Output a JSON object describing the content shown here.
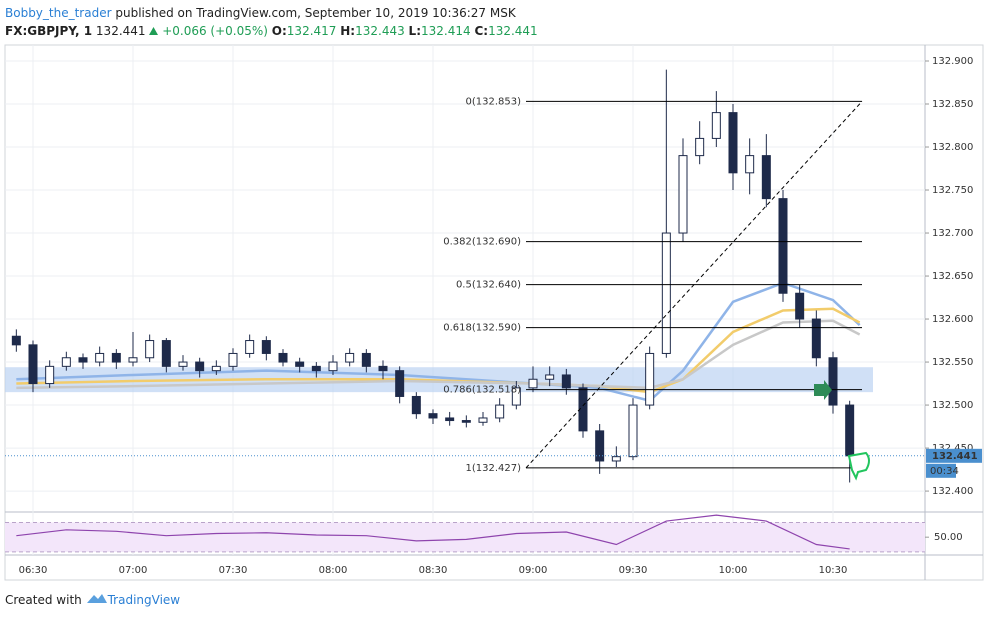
{
  "header": {
    "author": "Bobby_the_trader",
    "published": "published on TradingView.com, September 10, 2019 10:36:27 MSK",
    "symbol": "FX:GBPJPY, 1",
    "last": "132.441",
    "change": "+0.066 (+0.05%)",
    "ohlc": [
      {
        "key": "O:",
        "value": "132.417"
      },
      {
        "key": "H:",
        "value": "132.443"
      },
      {
        "key": "L:",
        "value": "132.414"
      },
      {
        "key": "C:",
        "value": "132.441"
      }
    ]
  },
  "chart_data": [
    {
      "type": "candlestick",
      "x": [
        385,
        390,
        395,
        400,
        405,
        410,
        415,
        420,
        425,
        430,
        435,
        440,
        445,
        450,
        455,
        460,
        465,
        470,
        475,
        480,
        485,
        490,
        495,
        500,
        505,
        510,
        515,
        520,
        525,
        530,
        535,
        540,
        545,
        550,
        555,
        560,
        565,
        570,
        575,
        580,
        585,
        590,
        595,
        600,
        605,
        610,
        615,
        620,
        625,
        630,
        635
      ],
      "open": [
        132.58,
        132.57,
        132.525,
        132.545,
        132.555,
        132.55,
        132.56,
        132.55,
        132.555,
        132.575,
        132.545,
        132.55,
        132.54,
        132.545,
        132.56,
        132.575,
        132.56,
        132.55,
        132.545,
        132.54,
        132.55,
        132.56,
        132.545,
        132.54,
        132.51,
        132.49,
        132.485,
        132.482,
        132.48,
        132.485,
        132.5,
        132.52,
        132.53,
        132.535,
        132.52,
        132.47,
        132.435,
        132.44,
        132.5,
        132.56,
        132.7,
        132.79,
        132.81,
        132.84,
        132.77,
        132.79,
        132.74,
        132.63,
        132.6,
        132.555,
        132.5
      ],
      "high": [
        132.588,
        132.575,
        132.552,
        132.562,
        132.56,
        132.568,
        132.565,
        132.585,
        132.582,
        132.578,
        132.558,
        132.555,
        132.552,
        132.566,
        132.582,
        132.58,
        132.565,
        132.555,
        132.55,
        132.558,
        132.566,
        132.565,
        132.552,
        132.545,
        132.515,
        132.495,
        132.492,
        132.488,
        132.492,
        132.508,
        132.528,
        132.545,
        132.545,
        132.542,
        132.525,
        132.478,
        132.452,
        132.508,
        132.568,
        132.89,
        132.81,
        132.83,
        132.865,
        132.85,
        132.81,
        132.815,
        132.75,
        132.64,
        132.61,
        132.562,
        132.505
      ],
      "low": [
        132.562,
        132.515,
        132.52,
        132.54,
        132.542,
        132.545,
        132.542,
        132.545,
        132.55,
        132.538,
        132.54,
        132.532,
        132.535,
        132.54,
        132.555,
        132.552,
        132.545,
        132.538,
        132.532,
        132.535,
        132.545,
        132.538,
        132.53,
        132.502,
        132.484,
        132.478,
        132.476,
        132.474,
        132.476,
        132.48,
        132.495,
        132.515,
        132.522,
        132.512,
        132.462,
        132.42,
        132.428,
        132.436,
        132.495,
        132.555,
        132.69,
        132.78,
        132.8,
        132.75,
        132.745,
        132.73,
        132.62,
        132.59,
        132.545,
        132.49,
        132.41
      ],
      "close": [
        132.57,
        132.525,
        132.545,
        132.555,
        132.55,
        132.56,
        132.55,
        132.555,
        132.575,
        132.545,
        132.55,
        132.54,
        132.545,
        132.56,
        132.575,
        132.56,
        132.55,
        132.545,
        132.54,
        132.55,
        132.56,
        132.545,
        132.54,
        132.51,
        132.49,
        132.485,
        132.482,
        132.48,
        132.485,
        132.5,
        132.52,
        132.53,
        132.535,
        132.52,
        132.47,
        132.435,
        132.44,
        132.5,
        132.56,
        132.7,
        132.79,
        132.81,
        132.84,
        132.77,
        132.79,
        132.74,
        132.63,
        132.6,
        132.555,
        132.5,
        132.441
      ],
      "up_color": "#ffffff",
      "down_color": "#1e2a4a",
      "outline": "#1e2a4a",
      "ma_x": [
        385,
        420,
        460,
        500,
        540,
        560,
        575,
        585,
        600,
        615,
        630,
        638
      ],
      "moving_averages": [
        {
          "color": "#8fb4e8",
          "values": [
            132.53,
            132.535,
            132.54,
            132.535,
            132.525,
            132.52,
            132.505,
            132.54,
            132.62,
            132.642,
            132.622,
            132.593
          ]
        },
        {
          "color": "#f2cc6b",
          "values": [
            132.525,
            132.528,
            132.53,
            132.53,
            132.525,
            132.522,
            132.515,
            132.53,
            132.585,
            132.61,
            132.612,
            132.596
          ]
        },
        {
          "color": "#c8c8c8",
          "values": [
            132.52,
            132.522,
            132.525,
            132.528,
            132.525,
            132.522,
            132.52,
            132.53,
            132.57,
            132.596,
            132.598,
            132.582
          ]
        }
      ],
      "zone": {
        "x": [
          381.6,
          642
        ],
        "y": [
          132.515,
          132.544
        ],
        "color": "#bcd3f2"
      },
      "fib": {
        "x": [
          540,
          638.7
        ],
        "levels": [
          {
            "label": "0(132.853)",
            "value": 132.853
          },
          {
            "label": "0.382(132.690)",
            "value": 132.69
          },
          {
            "label": "0.5(132.640)",
            "value": 132.64
          },
          {
            "label": "0.618(132.590)",
            "value": 132.59
          },
          {
            "label": "0.786(132.518)",
            "value": 132.518
          },
          {
            "label": "1(132.427)",
            "value": 132.427
          }
        ],
        "trend": {
          "x": [
            540,
            638.7
          ],
          "y": [
            132.427,
            132.853
          ]
        }
      },
      "last_price": 132.441,
      "countdown": "00:34",
      "last_color": "#4a8fce",
      "xlim": [
        381.6,
        657.6
      ],
      "xticks": [
        {
          "value": 390,
          "label": "06:30"
        },
        {
          "value": 420,
          "label": "07:00"
        },
        {
          "value": 450,
          "label": "07:30"
        },
        {
          "value": 480,
          "label": "08:00"
        },
        {
          "value": 510,
          "label": "08:30"
        },
        {
          "value": 540,
          "label": "09:00"
        },
        {
          "value": 570,
          "label": "09:30"
        },
        {
          "value": 600,
          "label": "10:00"
        },
        {
          "value": 630,
          "label": "10:30"
        }
      ],
      "ylim": [
        132.378,
        132.9186
      ],
      "yticks": [
        {
          "value": 132.4,
          "label": "132.400"
        },
        {
          "value": 132.45,
          "label": "132.450"
        },
        {
          "value": 132.5,
          "label": "132.500"
        },
        {
          "value": 132.55,
          "label": "132.550"
        },
        {
          "value": 132.6,
          "label": "132.600"
        },
        {
          "value": 132.65,
          "label": "132.650"
        },
        {
          "value": 132.7,
          "label": "132.700"
        },
        {
          "value": 132.75,
          "label": "132.750"
        },
        {
          "value": 132.8,
          "label": "132.800"
        },
        {
          "value": 132.85,
          "label": "132.850"
        },
        {
          "value": 132.9,
          "label": "132.900"
        }
      ],
      "grid": true
    },
    {
      "type": "line",
      "x": [
        385,
        400,
        415,
        430,
        445,
        460,
        475,
        490,
        505,
        520,
        535,
        550,
        565,
        580,
        595,
        610,
        625,
        635
      ],
      "values": [
        52,
        60,
        58,
        52,
        55,
        56,
        53,
        52,
        45,
        47,
        55,
        57,
        40,
        72,
        80,
        72,
        40,
        34
      ],
      "color": "#8e44ad",
      "band": [
        30,
        70
      ],
      "band_color": "#f3e6fa",
      "xlim": [
        381.6,
        657.6
      ],
      "ylim": [
        25.7,
        84.3
      ],
      "yticks": [
        {
          "value": 50,
          "label": "50.00"
        }
      ]
    }
  ],
  "footer": {
    "prefix": "Created with",
    "brand": "TradingView"
  }
}
